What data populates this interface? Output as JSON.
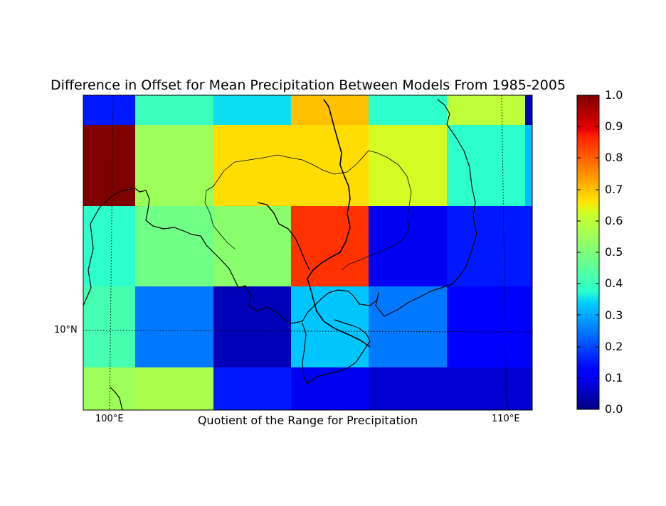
{
  "title": "Difference in Offset for Mean Precipitation Between Models From 1985-2005",
  "xlabel": "Quotient of the Range for Precipitation",
  "lon_ticks": [
    "100°E",
    "110°E"
  ],
  "lat_ticks": [
    "10°N"
  ],
  "colorbar": {
    "ticks": [
      "0.0",
      "0.1",
      "0.2",
      "0.3",
      "0.4",
      "0.5",
      "0.6",
      "0.7",
      "0.8",
      "0.9",
      "1.0"
    ],
    "colormap": "jet",
    "range": [
      0.0,
      1.0
    ]
  },
  "chart_data": {
    "type": "heatmap",
    "title": "Difference in Offset for Mean Precipitation Between Models From 1985-2005",
    "xlabel": "Quotient of the Range for Precipitation",
    "ylabel": "",
    "rows_north_to_south": [
      [
        0.15,
        0.4,
        0.35,
        0.7,
        0.38,
        0.6,
        0.05
      ],
      [
        1.0,
        0.55,
        0.67,
        0.67,
        0.63,
        0.38,
        0.32
      ],
      [
        0.38,
        0.48,
        0.52,
        0.85,
        0.1,
        0.15,
        0.15
      ],
      [
        0.42,
        0.25,
        0.05,
        0.33,
        0.25,
        0.12,
        0.1
      ],
      [
        0.55,
        0.57,
        0.15,
        0.1,
        0.07,
        0.07,
        0.07
      ]
    ],
    "vmin": 0.0,
    "vmax": 1.0,
    "grid": true
  }
}
